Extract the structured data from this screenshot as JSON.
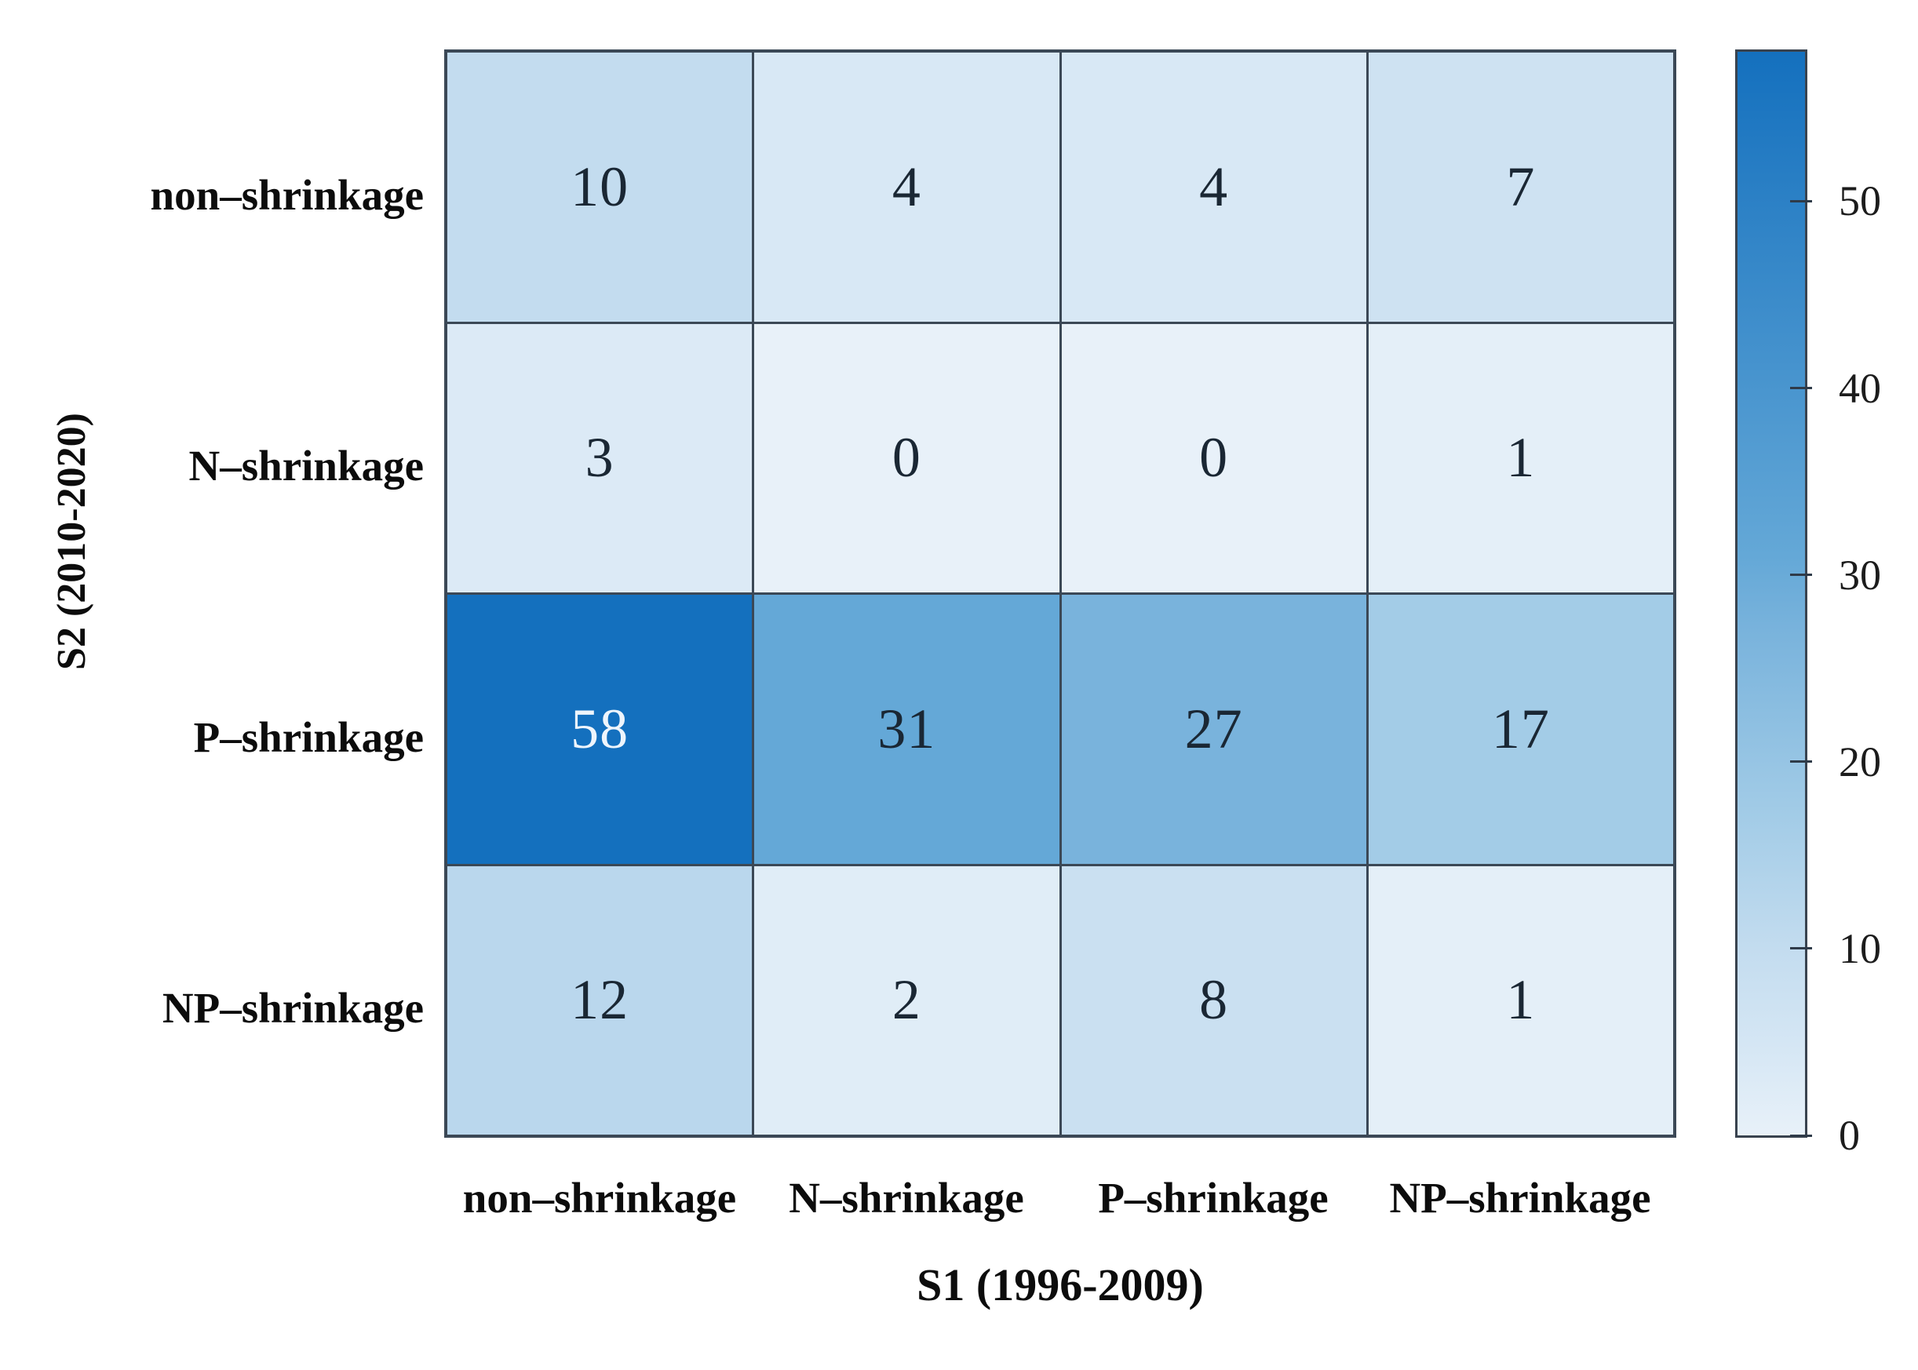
{
  "figure": {
    "background": "#ffffff",
    "grid_line_color": "#3b4856",
    "cell_text_dark": "#1a2734",
    "cell_text_light": "#eef5fc",
    "light_text_threshold": 45
  },
  "chart_data": {
    "type": "heatmap",
    "title": "",
    "xlabel": "S1 (1996-2009)",
    "ylabel": "S2 (2010-2020)",
    "x_categories": [
      "non–shrinkage",
      "N–shrinkage",
      "P–shrinkage",
      "NP–shrinkage"
    ],
    "y_categories": [
      "non–shrinkage",
      "N–shrinkage",
      "P–shrinkage",
      "NP–shrinkage"
    ],
    "matrix": [
      [
        10,
        4,
        4,
        7
      ],
      [
        3,
        0,
        0,
        1
      ],
      [
        58,
        31,
        27,
        17
      ],
      [
        12,
        2,
        8,
        1
      ]
    ],
    "vmin": 0,
    "vmax": 58,
    "colorbar_ticks": [
      0,
      10,
      20,
      30,
      40,
      50
    ],
    "colormap_anchors": [
      [
        0,
        "#e8f1f9"
      ],
      [
        4,
        "#d8e8f5"
      ],
      [
        10,
        "#c3dcef"
      ],
      [
        17,
        "#a3cce7"
      ],
      [
        27,
        "#79b3dc"
      ],
      [
        31,
        "#64a8d7"
      ],
      [
        58,
        "#1470be"
      ]
    ],
    "legend_position": "right-colorbar",
    "grid": "on"
  }
}
